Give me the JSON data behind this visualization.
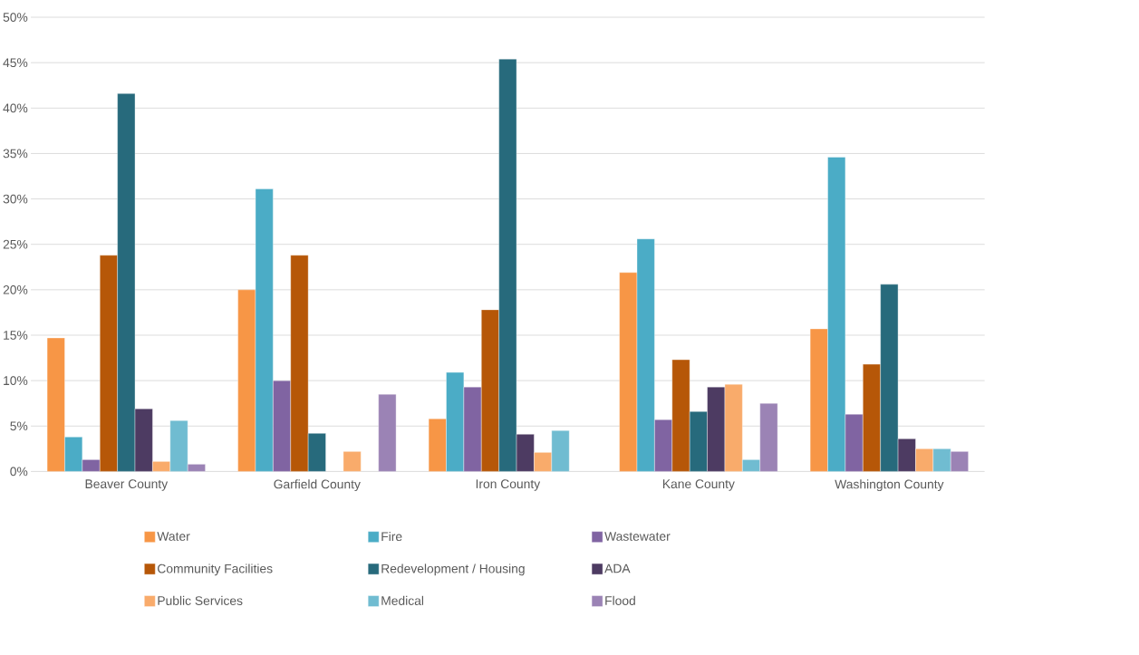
{
  "chart_data": {
    "type": "bar",
    "categories": [
      "Beaver County",
      "Garfield County",
      "Iron County",
      "Kane County",
      "Washington County"
    ],
    "series": [
      {
        "name": "Water",
        "color": "#f79646",
        "values": [
          14.7,
          20.0,
          5.8,
          21.9,
          15.7
        ]
      },
      {
        "name": "Fire",
        "color": "#4bacc6",
        "values": [
          3.8,
          31.1,
          10.9,
          25.6,
          34.6
        ]
      },
      {
        "name": "Wastewater",
        "color": "#8064a2",
        "values": [
          1.3,
          10.0,
          9.3,
          5.7,
          6.3
        ]
      },
      {
        "name": "Community Facilities",
        "color": "#b65708",
        "values": [
          23.8,
          23.8,
          17.8,
          12.3,
          11.8
        ]
      },
      {
        "name": "Redevelopment / Housing",
        "color": "#276a7c",
        "values": [
          41.6,
          4.2,
          45.4,
          6.6,
          20.6
        ]
      },
      {
        "name": "ADA",
        "color": "#4d3b62",
        "values": [
          6.9,
          null,
          4.1,
          9.3,
          3.6
        ]
      },
      {
        "name": "Public Services",
        "color": "#f9ab6b",
        "values": [
          1.1,
          2.2,
          2.1,
          9.6,
          2.5
        ]
      },
      {
        "name": "Medical",
        "color": "#70bcd1",
        "values": [
          5.6,
          null,
          4.5,
          1.3,
          2.5
        ]
      },
      {
        "name": "Flood",
        "color": "#9b83b5",
        "values": [
          0.8,
          8.5,
          null,
          7.5,
          2.2
        ]
      }
    ],
    "ylim": [
      0,
      50
    ],
    "yticks": [
      {
        "value": 0,
        "label": "0%"
      },
      {
        "value": 5,
        "label": "5%"
      },
      {
        "value": 10,
        "label": "10%"
      },
      {
        "value": 15,
        "label": "15%"
      },
      {
        "value": 20,
        "label": "20%"
      },
      {
        "value": 25,
        "label": "25%"
      },
      {
        "value": 30,
        "label": "30%"
      },
      {
        "value": 35,
        "label": "35%"
      },
      {
        "value": 40,
        "label": "40%"
      },
      {
        "value": 45,
        "label": "45%"
      },
      {
        "value": 50,
        "label": "50%"
      }
    ],
    "grid": "y",
    "legend": "bottom"
  }
}
